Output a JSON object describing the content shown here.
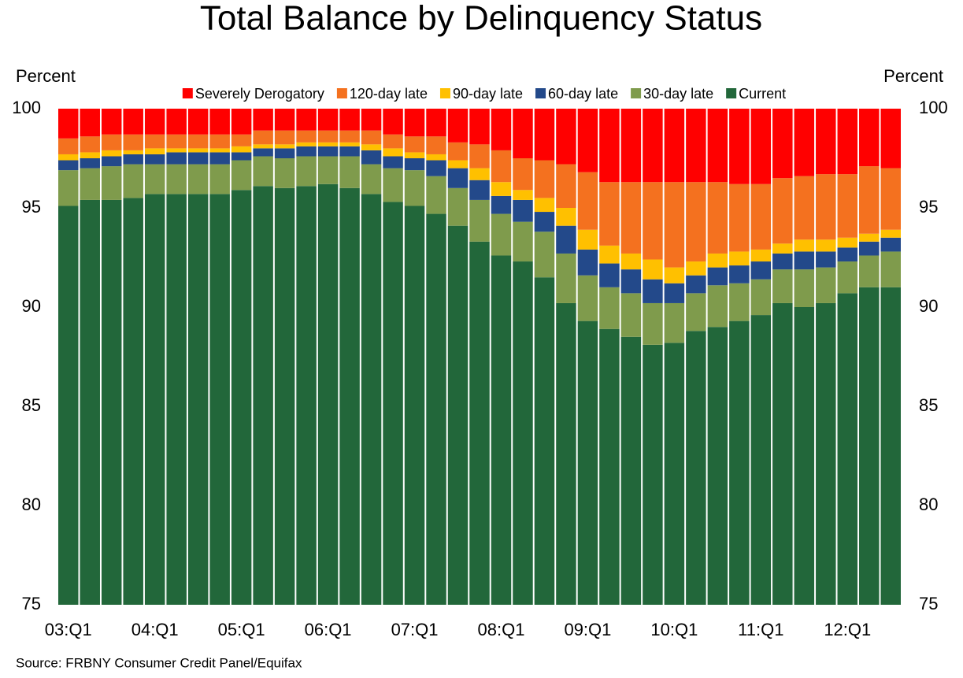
{
  "chart_data": {
    "type": "stacked_bar",
    "title": "Total Balance by Delinquency Status",
    "ylabel": "Percent",
    "y2label": "Percent",
    "source": "Source: FRBNY Consumer Credit Panel/Equifax",
    "categories": [
      "03:Q1",
      null,
      null,
      null,
      "04:Q1",
      null,
      null,
      null,
      "05:Q1",
      null,
      null,
      null,
      "06:Q1",
      null,
      null,
      null,
      "07:Q1",
      null,
      null,
      null,
      "08:Q1",
      null,
      null,
      null,
      "09:Q1",
      null,
      null,
      null,
      "10:Q1",
      null,
      null,
      null,
      "11:Q1",
      null,
      null,
      null,
      "12:Q1",
      null,
      null
    ],
    "ylim": [
      75,
      100
    ],
    "yticks": [
      75,
      80,
      85,
      90,
      95,
      100
    ],
    "y2lim": [
      75,
      100
    ],
    "y2ticks": [
      75,
      80,
      85,
      90,
      95,
      100
    ],
    "legend": "top",
    "series": [
      {
        "name": "Severely Derogatory",
        "color": "#ff0000",
        "values": [
          1.5,
          1.4,
          1.3,
          1.3,
          1.3,
          1.3,
          1.3,
          1.3,
          1.3,
          1.1,
          1.1,
          1.1,
          1.1,
          1.1,
          1.1,
          1.3,
          1.4,
          1.4,
          1.7,
          1.8,
          2.1,
          2.5,
          2.6,
          2.8,
          3.2,
          3.7,
          3.7,
          3.7,
          3.7,
          3.7,
          3.7,
          3.8,
          3.8,
          3.5,
          3.4,
          3.3,
          3.3,
          2.9,
          3.0
        ]
      },
      {
        "name": "120-day late",
        "color": "#f4711f",
        "values": [
          0.8,
          0.8,
          0.8,
          0.8,
          0.7,
          0.7,
          0.7,
          0.7,
          0.6,
          0.7,
          0.7,
          0.6,
          0.6,
          0.6,
          0.7,
          0.7,
          0.8,
          0.9,
          0.9,
          1.2,
          1.6,
          1.6,
          1.9,
          2.2,
          2.9,
          3.2,
          3.6,
          3.9,
          4.3,
          4.0,
          3.6,
          3.4,
          3.3,
          3.3,
          3.2,
          3.3,
          3.2,
          3.4,
          3.1
        ]
      },
      {
        "name": "90-day late",
        "color": "#ffc000",
        "values": [
          0.3,
          0.3,
          0.3,
          0.2,
          0.3,
          0.2,
          0.2,
          0.2,
          0.3,
          0.2,
          0.2,
          0.2,
          0.2,
          0.2,
          0.3,
          0.4,
          0.3,
          0.3,
          0.4,
          0.6,
          0.7,
          0.5,
          0.7,
          0.9,
          1.0,
          0.9,
          0.8,
          1.0,
          0.8,
          0.7,
          0.7,
          0.7,
          0.6,
          0.5,
          0.6,
          0.6,
          0.5,
          0.4,
          0.4
        ]
      },
      {
        "name": "60-day late",
        "color": "#23498a",
        "values": [
          0.5,
          0.5,
          0.5,
          0.5,
          0.5,
          0.6,
          0.6,
          0.6,
          0.4,
          0.4,
          0.5,
          0.5,
          0.5,
          0.5,
          0.7,
          0.6,
          0.6,
          0.8,
          1.0,
          1.0,
          0.9,
          1.1,
          1.0,
          1.4,
          1.3,
          1.2,
          1.2,
          1.2,
          1.0,
          0.9,
          0.9,
          0.9,
          0.9,
          0.8,
          0.9,
          0.8,
          0.7,
          0.7,
          0.7
        ]
      },
      {
        "name": "30-day late",
        "color": "#7f9b4c",
        "values": [
          1.8,
          1.6,
          1.7,
          1.7,
          1.5,
          1.5,
          1.5,
          1.5,
          1.5,
          1.5,
          1.5,
          1.5,
          1.4,
          1.6,
          1.5,
          1.7,
          1.8,
          1.9,
          1.9,
          2.1,
          2.1,
          2.0,
          2.3,
          2.5,
          2.3,
          2.1,
          2.2,
          2.1,
          2.0,
          1.9,
          2.1,
          1.9,
          1.8,
          1.7,
          1.9,
          1.8,
          1.6,
          1.6,
          1.8
        ]
      },
      {
        "name": "Current",
        "color": "#22673a",
        "values": [
          95.1,
          95.4,
          95.4,
          95.5,
          95.7,
          95.7,
          95.7,
          95.7,
          95.9,
          96.1,
          96.0,
          96.1,
          96.2,
          96.0,
          95.7,
          95.3,
          95.1,
          94.7,
          94.1,
          93.3,
          92.6,
          92.3,
          91.5,
          90.2,
          89.3,
          88.9,
          88.5,
          88.1,
          88.2,
          88.8,
          89.0,
          89.3,
          89.6,
          90.2,
          90.0,
          90.2,
          90.7,
          91.0,
          91.0
        ]
      }
    ]
  }
}
